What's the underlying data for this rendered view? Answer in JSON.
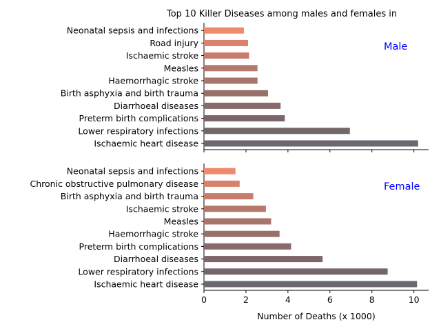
{
  "chart_data": {
    "type": "bar",
    "orientation": "horizontal",
    "title": "Top 10 Killer Diseases among males and females in",
    "xlabel": "Number of Deaths (x 1000)",
    "xlim": [
      0,
      10.7
    ],
    "xticks": [
      "0",
      "2",
      "4",
      "6",
      "8",
      "10"
    ],
    "xtick_values": [
      0,
      2,
      4,
      6,
      8,
      10
    ],
    "grid": false,
    "bar_colors": [
      "#6b6870",
      "#73666b",
      "#7c666a",
      "#886c6c",
      "#967069",
      "#a8756c",
      "#b6786b",
      "#c77c6c",
      "#d8816b",
      "#ee896b"
    ],
    "panels": [
      {
        "name": "Male",
        "categories": [
          "Ischaemic heart disease",
          "Lower respiratory infections",
          "Preterm birth complications",
          "Diarrhoeal diseases",
          "Birth asphyxia and birth trauma",
          "Haemorrhagic stroke",
          "Measles",
          "Ischaemic stroke",
          "Road injury",
          "Neonatal sepsis and infections"
        ],
        "values": [
          10.2,
          6.95,
          3.85,
          3.65,
          3.05,
          2.55,
          2.55,
          2.15,
          2.1,
          1.9
        ]
      },
      {
        "name": "Female",
        "categories": [
          "Ischaemic heart disease",
          "Lower respiratory infections",
          "Diarrhoeal diseases",
          "Preterm birth complications",
          "Haemorrhagic stroke",
          "Measles",
          "Ischaemic stroke",
          "Birth asphyxia and birth trauma",
          "Chronic obstructive pulmonary disease",
          "Neonatal sepsis and infections"
        ],
        "values": [
          10.15,
          8.75,
          5.65,
          4.15,
          3.6,
          3.2,
          2.95,
          2.35,
          1.7,
          1.5
        ]
      }
    ]
  }
}
